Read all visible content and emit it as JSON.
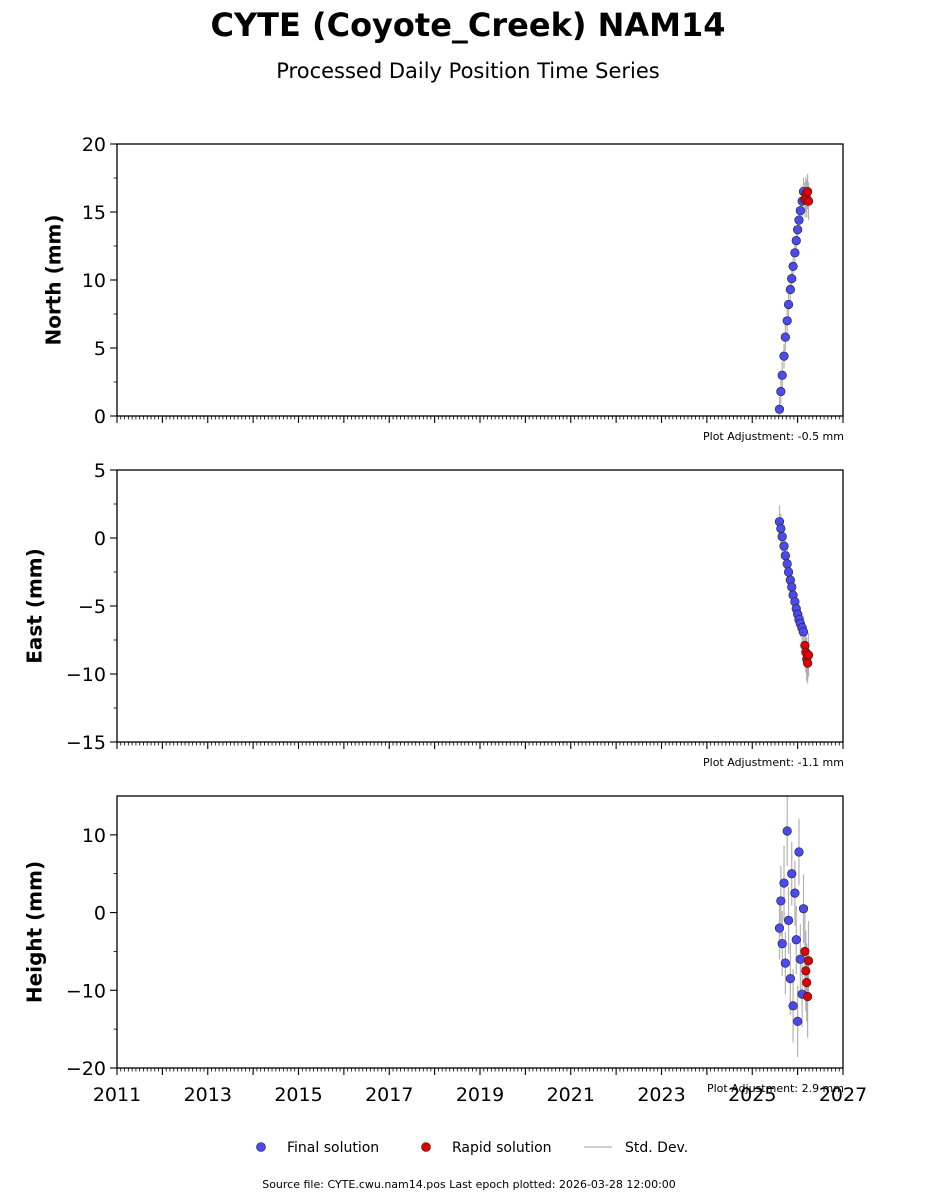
{
  "title": "CYTE (Coyote_Creek) NAM14",
  "subtitle": "Processed Daily Position Time Series",
  "footer": "Source file: CYTE.cwu.nam14.pos  Last epoch plotted: 2026-03-28 12:00:00",
  "legend": {
    "final": "Final solution",
    "rapid": "Rapid solution",
    "std": "Std. Dev."
  },
  "colors": {
    "final": "#4a4af0",
    "rapid": "#e00000",
    "std": "#9a9a9a"
  },
  "chart_data": [
    {
      "type": "scatter",
      "ylabel": "North (mm)",
      "ylim": [
        0,
        20
      ],
      "yticks": [
        0,
        5,
        10,
        15,
        20
      ],
      "xlim": [
        2011,
        2027
      ],
      "adjustment": "Plot Adjustment: -0.5 mm",
      "final": {
        "x": [
          2025.6,
          2025.63,
          2025.66,
          2025.7,
          2025.73,
          2025.77,
          2025.8,
          2025.84,
          2025.87,
          2025.9,
          2025.94,
          2025.97,
          2026.0,
          2026.03,
          2026.06,
          2026.1,
          2026.13
        ],
        "y": [
          0.5,
          1.8,
          3.0,
          4.4,
          5.8,
          7.0,
          8.2,
          9.3,
          10.1,
          11.0,
          12.0,
          12.9,
          13.7,
          14.4,
          15.1,
          15.8,
          16.5
        ],
        "sd": [
          0.9,
          0.9,
          1.0,
          0.9,
          1.0,
          1.1,
          1.0,
          0.9,
          1.0,
          1.0,
          1.1,
          1.0,
          1.0,
          0.9,
          1.0,
          1.1,
          1.0
        ]
      },
      "rapid": {
        "x": [
          2026.16,
          2026.18,
          2026.2,
          2026.22,
          2026.24
        ],
        "y": [
          15.9,
          16.3,
          16.0,
          16.5,
          15.8
        ],
        "sd": [
          1.3,
          1.3,
          1.4,
          1.3,
          1.4
        ]
      }
    },
    {
      "type": "scatter",
      "ylabel": "East (mm)",
      "ylim": [
        -15,
        5
      ],
      "yticks": [
        -15,
        -10,
        -5,
        0,
        5
      ],
      "xlim": [
        2011,
        2027
      ],
      "adjustment": "Plot Adjustment: -1.1 mm",
      "final": {
        "x": [
          2025.6,
          2025.63,
          2025.66,
          2025.7,
          2025.73,
          2025.77,
          2025.8,
          2025.84,
          2025.87,
          2025.9,
          2025.94,
          2025.97,
          2026.0,
          2026.03,
          2026.06,
          2026.1,
          2026.13
        ],
        "y": [
          1.2,
          0.7,
          0.1,
          -0.6,
          -1.3,
          -1.9,
          -2.5,
          -3.1,
          -3.6,
          -4.2,
          -4.7,
          -5.2,
          -5.6,
          -6.0,
          -6.3,
          -6.6,
          -6.9
        ],
        "sd": [
          1.2,
          1.1,
          1.2,
          1.0,
          1.1,
          1.2,
          1.1,
          1.0,
          1.2,
          1.1,
          1.0,
          1.1,
          1.2,
          1.1,
          1.0,
          1.1,
          1.2
        ]
      },
      "rapid": {
        "x": [
          2026.16,
          2026.18,
          2026.2,
          2026.22,
          2026.24
        ],
        "y": [
          -7.9,
          -8.4,
          -8.9,
          -9.2,
          -8.6
        ],
        "sd": [
          1.5,
          1.5,
          1.6,
          1.5,
          1.6
        ]
      }
    },
    {
      "type": "scatter",
      "ylabel": "Height (mm)",
      "ylim": [
        -20,
        15
      ],
      "yticks": [
        -20,
        -10,
        0,
        10
      ],
      "xlim": [
        2011,
        2027
      ],
      "xticks": [
        2011,
        2013,
        2015,
        2017,
        2019,
        2021,
        2023,
        2025,
        2027
      ],
      "adjustment": "Plot Adjustment: 2.9 mm",
      "final": {
        "x": [
          2025.6,
          2025.63,
          2025.66,
          2025.7,
          2025.73,
          2025.77,
          2025.8,
          2025.84,
          2025.87,
          2025.9,
          2025.94,
          2025.97,
          2026.0,
          2026.03,
          2026.06,
          2026.1,
          2026.13
        ],
        "y": [
          -2.0,
          1.5,
          -4.0,
          3.8,
          -6.5,
          10.5,
          -1.0,
          -8.5,
          5.0,
          -12.0,
          2.5,
          -3.5,
          -14.0,
          7.8,
          -6.0,
          -10.5,
          0.5
        ],
        "sd": [
          4.0,
          4.5,
          4.2,
          4.8,
          4.0,
          4.5,
          4.3,
          4.6,
          4.1,
          4.7,
          4.2,
          4.4,
          4.6,
          4.3,
          4.5,
          4.2,
          4.4
        ]
      },
      "rapid": {
        "x": [
          2026.16,
          2026.18,
          2026.2,
          2026.22,
          2026.24
        ],
        "y": [
          -5.0,
          -7.5,
          -9.0,
          -10.8,
          -6.2
        ],
        "sd": [
          5.0,
          5.2,
          5.0,
          5.3,
          5.1
        ]
      }
    }
  ]
}
